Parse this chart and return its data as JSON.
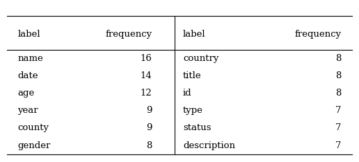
{
  "left_labels": [
    "name",
    "date",
    "age",
    "year",
    "county",
    "gender"
  ],
  "left_freqs": [
    "16",
    "14",
    "12",
    "9",
    "9",
    "8"
  ],
  "right_labels": [
    "country",
    "title",
    "id",
    "type",
    "status",
    "description"
  ],
  "right_freqs": [
    "8",
    "8",
    "8",
    "7",
    "7",
    "7"
  ],
  "col_headers": [
    "label",
    "frequency",
    "label",
    "frequency"
  ],
  "bg_color": "#ffffff",
  "text_color": "#000000",
  "font_size": 9.5
}
